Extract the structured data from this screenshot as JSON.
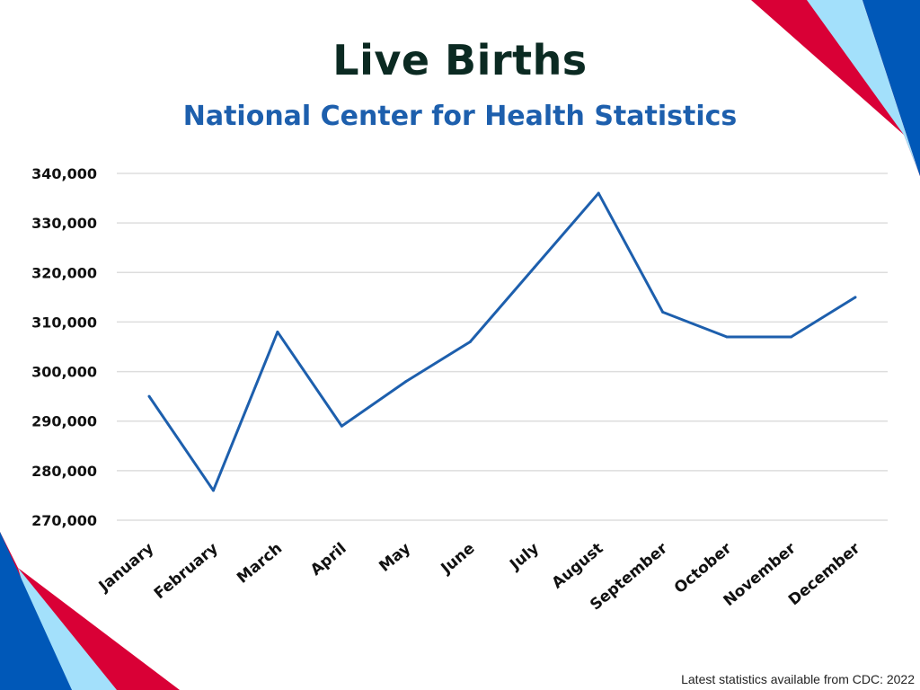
{
  "header": {
    "title": "Live Births",
    "subtitle": "National Center for Health Statistics"
  },
  "footer": {
    "note": "Latest statistics available from CDC: 2022"
  },
  "colors": {
    "line": "#1d5fad",
    "title": "#0b2a22",
    "subtitle": "#1d5fad",
    "accent_red": "#d90036",
    "accent_blue": "#0058b8",
    "accent_light_blue": "#a3e0fb",
    "grid": "#dddddd"
  },
  "chart_data": {
    "type": "line",
    "title": "Live Births",
    "subtitle": "National Center for Health Statistics",
    "xlabel": "",
    "ylabel": "",
    "ylim": [
      270000,
      340000
    ],
    "yticks": [
      340000,
      330000,
      320000,
      310000,
      300000,
      290000,
      280000,
      270000
    ],
    "ytick_labels": [
      "340,000",
      "330,000",
      "320,000",
      "310,000",
      "300,000",
      "290,000",
      "280,000",
      "270,000"
    ],
    "grid": true,
    "categories": [
      "January",
      "February",
      "March",
      "April",
      "May",
      "June",
      "July",
      "August",
      "September",
      "October",
      "November",
      "December"
    ],
    "series": [
      {
        "name": "Live Births",
        "values": [
          295000,
          276000,
          308000,
          289000,
          298000,
          306000,
          321000,
          336000,
          312000,
          307000,
          307000,
          315000
        ]
      }
    ]
  }
}
